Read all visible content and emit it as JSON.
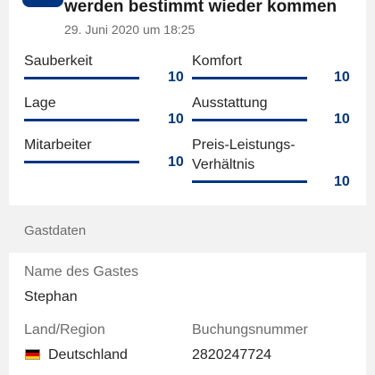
{
  "review": {
    "title": "werden bestimmt wieder kommen",
    "date": "29. Juni 2020 um 18:25",
    "ratings": [
      {
        "label": "Sauberkeit",
        "value": "10",
        "fraction": 1.0
      },
      {
        "label": "Komfort",
        "value": "10",
        "fraction": 1.0
      },
      {
        "label": "Lage",
        "value": "10",
        "fraction": 1.0
      },
      {
        "label": "Ausstattung",
        "value": "10",
        "fraction": 1.0
      },
      {
        "label": "Mitarbeiter",
        "value": "10",
        "fraction": 1.0
      },
      {
        "label": "Preis-Leistungs-",
        "label2": "Verhältnis",
        "value": "10",
        "fraction": 1.0
      }
    ]
  },
  "guest": {
    "section_title": "Gastdaten",
    "name_label": "Name des Gastes",
    "name_value": "Stephan",
    "country_label": "Land/Region",
    "country_value": "Deutschland",
    "booking_label": "Buchungsnummer",
    "booking_value": "2820247724"
  },
  "colors": {
    "accent": "#003580",
    "background": "#f2f2f2",
    "card": "#ffffff",
    "muted_text": "#6b6b6b"
  },
  "icons": {
    "flag": "germany-flag-icon"
  }
}
